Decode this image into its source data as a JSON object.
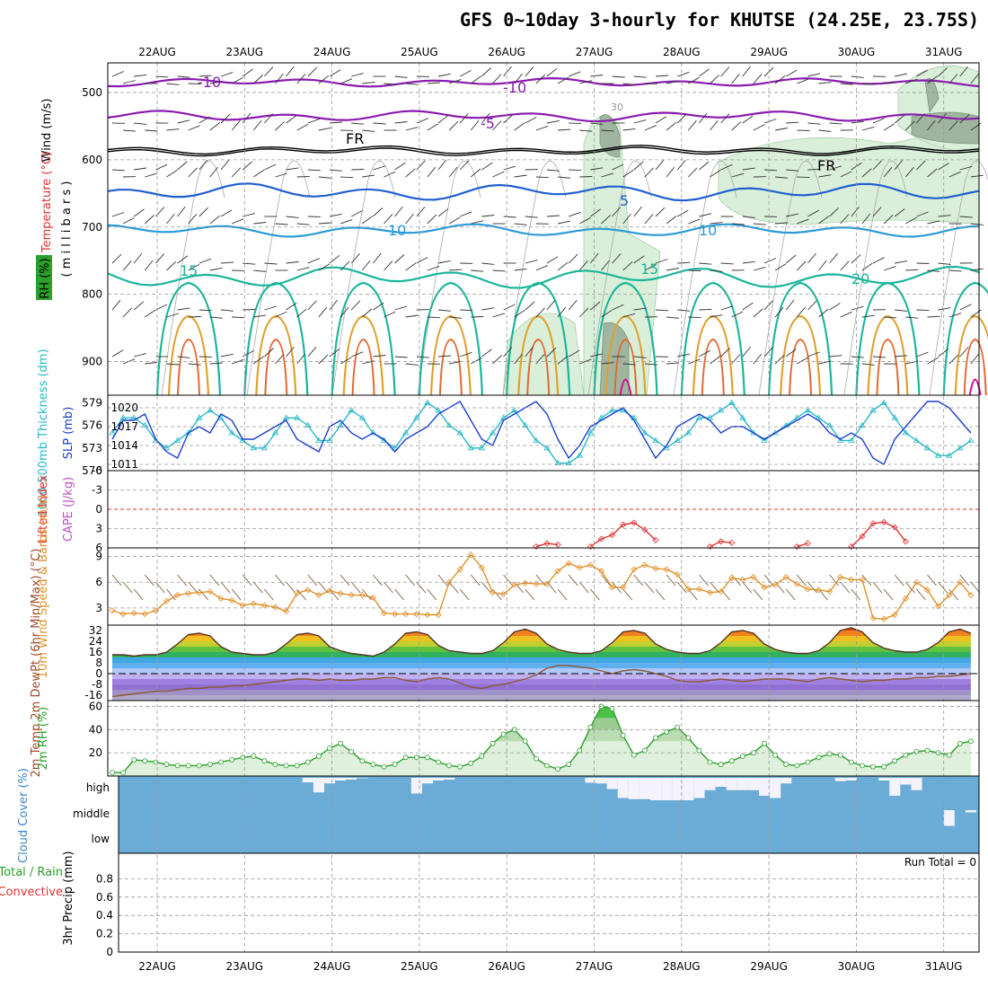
{
  "title": "GFS 0~10day 3-hourly for KHUTSE (24.25E, 23.75S)",
  "colors": {
    "temp_purple": "#8a1bb0",
    "temp_blue": "#1f5fcf",
    "temp_lightblue": "#2a9ad8",
    "temp_teal": "#1bb59a",
    "temp_orange": "#e0a030",
    "slp": "#1a3fcf",
    "thickness": "#26b8c8",
    "lifted_index": "#e03030",
    "cape": "#c050c0",
    "wind10m": "#e0902a",
    "rh": "#2aa02a",
    "cloud": "#6aacd6",
    "precip_total": "#2aa02a",
    "precip_conv": "#e03030"
  },
  "chart_data": [
    {
      "panel": "upper-air",
      "type": "heatmap",
      "x_ticks": [
        "22AUG",
        "23AUG",
        "24AUG",
        "25AUG",
        "26AUG",
        "27AUG",
        "28AUG",
        "29AUG",
        "30AUG",
        "31AUG"
      ],
      "y_ticks": [
        "500",
        "600",
        "700",
        "800",
        "900"
      ],
      "ylabel_parts": {
        "wind": "Wind (m/s)",
        "temperature": "Temperature (°C)",
        "millibars": "( m i l l i b a r s )",
        "rh": "RH (%)"
      },
      "contour_labels": [
        "-10",
        "-10",
        "-5",
        "FR",
        "FR",
        "5",
        "10",
        "10",
        "15",
        "15",
        "20",
        "30"
      ]
    },
    {
      "panel": "thickness-slp",
      "type": "line",
      "ylabel_left": "1000-500mb Thickness (dm)",
      "ylabel_right": "SLP (mb)",
      "y_ticks_left": [
        "579",
        "576",
        "573",
        "570"
      ],
      "y_ticks_right": [
        "1020",
        "1017",
        "1014",
        "1011"
      ],
      "ylim_left": [
        570,
        580
      ],
      "ylim_right": [
        1010,
        1022
      ],
      "series": [
        {
          "name": "SLP (mb)",
          "values": [
            1015,
            1018,
            1018,
            1019,
            1015,
            1013,
            1012,
            1016,
            1017,
            1016,
            1019,
            1018,
            1015,
            1015,
            1016,
            1017,
            1018,
            1015,
            1014,
            1013,
            1017,
            1018,
            1016,
            1015,
            1016,
            1015,
            1013,
            1015,
            1016,
            1017,
            1019,
            1020,
            1021,
            1018,
            1015,
            1014,
            1018,
            1019,
            1020,
            1021,
            1019,
            1015,
            1012,
            1014,
            1017,
            1018,
            1019,
            1020,
            1018,
            1015,
            1012,
            1014,
            1017,
            1018,
            1019,
            1018,
            1016,
            1017,
            1017,
            1016,
            1015,
            1016,
            1017,
            1018,
            1019,
            1018,
            1016,
            1015,
            1016,
            1015,
            1012,
            1011,
            1015,
            1017,
            1019,
            1021,
            1021,
            1020,
            1018,
            1016
          ]
        },
        {
          "name": "1000-500mb Thickness (dm)",
          "values": [
            575,
            577,
            577,
            576,
            574,
            573,
            574,
            575,
            577,
            578,
            577,
            575,
            574,
            573,
            573,
            575,
            577,
            577,
            576,
            574,
            574,
            576,
            578,
            577,
            575,
            574,
            573,
            575,
            577,
            579,
            578,
            576,
            575,
            573,
            573,
            575,
            577,
            578,
            576,
            574,
            573,
            571,
            571,
            572,
            575,
            577,
            578,
            578,
            577,
            575,
            574,
            573,
            574,
            575,
            577,
            577,
            578,
            579,
            577,
            575,
            574,
            575,
            576,
            577,
            578,
            577,
            576,
            574,
            574,
            576,
            578,
            579,
            577,
            575,
            574,
            573,
            572,
            572,
            573,
            574
          ]
        }
      ]
    },
    {
      "panel": "lifted-cape",
      "type": "line",
      "ylabel_left": "Lifted Index",
      "ylabel_right": "CAPE (J/kg)",
      "y_ticks": [
        "-6",
        "-3",
        "0",
        "3",
        "6"
      ],
      "ylim": [
        -6,
        6
      ],
      "series": [
        {
          "name": "Lifted Index",
          "segments": [
            {
              "start": 39,
              "values": [
                5.8,
                5.3,
                5.5
              ]
            },
            {
              "start": 44,
              "values": [
                5.8,
                4.6,
                4.0,
                2.4,
                2.1,
                3.2,
                4.8
              ]
            },
            {
              "start": 55,
              "values": [
                5.8,
                5.0,
                5.2
              ]
            },
            {
              "start": 63,
              "values": [
                5.8,
                5.3
              ]
            },
            {
              "start": 68,
              "values": [
                5.8,
                4.2,
                2.2,
                2.0,
                2.8,
                5.0
              ]
            }
          ]
        }
      ]
    },
    {
      "panel": "wind10m",
      "type": "line",
      "ylabel": "10m Wind Speed & Barbs (m/s)",
      "y_ticks": [
        "3",
        "6",
        "9"
      ],
      "ylim": [
        1,
        10
      ],
      "series": [
        {
          "name": "10m Wind Speed",
          "values": [
            2.7,
            2.3,
            2.4,
            2.3,
            2.7,
            3.8,
            4.5,
            4.7,
            4.8,
            4.9,
            4.1,
            3.9,
            3.3,
            3.5,
            3.3,
            3.1,
            2.6,
            4.7,
            5.1,
            4.5,
            5.0,
            4.7,
            4.5,
            4.5,
            4.2,
            2.4,
            2.3,
            2.3,
            2.3,
            2.2,
            2.2,
            6.0,
            7.5,
            9.2,
            7.7,
            4.8,
            4.6,
            5.7,
            5.9,
            5.8,
            5.8,
            7.3,
            8.2,
            7.7,
            8.0,
            7.3,
            5.4,
            5.4,
            7.5,
            8.0,
            7.6,
            7.5,
            6.9,
            5.2,
            5.2,
            4.8,
            4.9,
            6.5,
            6.3,
            6.6,
            5.4,
            5.7,
            6.6,
            5.8,
            5.2,
            5.1,
            4.9,
            6.6,
            6.3,
            6.3,
            1.8,
            1.7,
            2.2,
            4.1,
            6.0,
            5.1,
            3.2,
            4.5,
            6.0,
            4.5
          ]
        }
      ]
    },
    {
      "panel": "temp2m",
      "type": "area",
      "ylabel": "2m Temp 2m DewPt (6hr Min/Max) (°C)",
      "y_ticks": [
        "32",
        "24",
        "16",
        "8",
        "0",
        "-8",
        "-16"
      ],
      "ylim": [
        -20,
        36
      ],
      "series": [
        {
          "name": "2m Temp",
          "values": [
            14,
            14,
            13,
            14,
            14,
            16,
            22,
            29,
            30,
            28,
            20,
            16,
            15,
            14,
            14,
            16,
            22,
            29,
            30,
            28,
            20,
            17,
            15,
            14,
            13,
            16,
            22,
            30,
            31,
            29,
            21,
            17,
            16,
            15,
            15,
            17,
            23,
            31,
            33,
            30,
            22,
            18,
            16,
            15,
            15,
            17,
            23,
            31,
            32,
            30,
            22,
            18,
            16,
            15,
            15,
            17,
            23,
            31,
            32,
            30,
            22,
            18,
            16,
            15,
            15,
            17,
            23,
            32,
            34,
            31,
            23,
            19,
            17,
            16,
            16,
            18,
            23,
            31,
            33,
            30
          ]
        },
        {
          "name": "2m DewPt",
          "values": [
            -17,
            -16,
            -15,
            -14,
            -13,
            -13,
            -12,
            -11,
            -11,
            -10,
            -10,
            -9,
            -9,
            -8,
            -7,
            -6,
            -5,
            -4,
            -4,
            -5,
            -4,
            -5,
            -5,
            -4,
            -4,
            -3,
            -3,
            -5,
            -6,
            -4,
            -3,
            -4,
            -7,
            -10,
            -11,
            -9,
            -8,
            -6,
            -4,
            -1,
            4,
            6,
            6,
            5,
            4,
            2,
            0,
            2,
            3,
            2,
            0,
            -2,
            -5,
            -6,
            -6,
            -5,
            -4,
            -5,
            -6,
            -5,
            -4,
            -4,
            -4,
            -5,
            -6,
            -4,
            -3,
            -4,
            -5,
            -6,
            -5,
            -5,
            -4,
            -4,
            -3,
            -3,
            -2,
            -2,
            -1,
            0
          ]
        }
      ]
    },
    {
      "panel": "rh2m",
      "type": "area",
      "ylabel": "2m RH (%)",
      "y_ticks": [
        "20",
        "40",
        "60"
      ],
      "ylim": [
        0,
        65
      ],
      "series": [
        {
          "name": "2m RH",
          "values": [
            3,
            3,
            14,
            13,
            12,
            10,
            9,
            9,
            9,
            10,
            12,
            14,
            16,
            17,
            13,
            10,
            9,
            9,
            12,
            17,
            24,
            28,
            21,
            13,
            10,
            8,
            10,
            16,
            16,
            16,
            12,
            9,
            8,
            11,
            17,
            28,
            36,
            40,
            30,
            15,
            9,
            6,
            10,
            22,
            42,
            60,
            58,
            35,
            18,
            22,
            33,
            38,
            42,
            33,
            22,
            12,
            10,
            13,
            17,
            20,
            28,
            18,
            10,
            9,
            12,
            16,
            19,
            18,
            12,
            9,
            8,
            8,
            13,
            18,
            21,
            22,
            20,
            18,
            28,
            30
          ]
        }
      ]
    },
    {
      "panel": "cloud-cover",
      "type": "bar",
      "ylabel": "Cloud Cover (%)",
      "y_ticks": [
        "high",
        "middle",
        "low"
      ],
      "series": [
        {
          "name": "high cloud gap",
          "values": [
            0,
            0,
            0,
            0,
            0,
            0,
            0,
            0,
            0,
            0,
            0,
            0,
            0,
            0,
            0,
            0,
            0,
            0,
            0.2,
            0.65,
            0.25,
            0.12,
            0.08,
            0.02,
            0,
            0,
            0,
            0,
            0.7,
            0.25,
            0.12,
            0.08,
            0,
            0,
            0,
            0,
            0,
            0,
            0,
            0,
            0,
            0,
            0,
            0,
            0.22,
            0.25,
            0.5,
            0.9,
            0.95,
            0.95,
            1,
            1,
            1,
            1,
            0.9,
            0.55,
            0.4,
            0.55,
            0.55,
            0.55,
            0.8,
            0.9,
            0.25,
            0,
            0,
            0,
            0,
            0.15,
            0.12,
            0,
            0,
            0.12,
            0.8,
            0.3,
            0.55,
            0,
            0,
            0,
            0,
            0
          ]
        },
        {
          "name": "middle cloud gap",
          "values": [
            0,
            0,
            0,
            0,
            0,
            0,
            0,
            0,
            0,
            0,
            0,
            0,
            0,
            0,
            0,
            0,
            0,
            0,
            0,
            0,
            0,
            0,
            0,
            0,
            0,
            0,
            0,
            0,
            0,
            0,
            0,
            0,
            0,
            0,
            0,
            0,
            0,
            0,
            0,
            0,
            0,
            0,
            0,
            0,
            0,
            0,
            0,
            0,
            0,
            0,
            0,
            0,
            0,
            0,
            0,
            0,
            0,
            0,
            0,
            0,
            0,
            0,
            0,
            0,
            0,
            0,
            0,
            0,
            0,
            0,
            0,
            0,
            0,
            0,
            0,
            0,
            0,
            0.7,
            0,
            0.1
          ]
        }
      ]
    },
    {
      "panel": "precip",
      "type": "bar",
      "ylabel": "3hr Precip (mm)",
      "legend_left": [
        "Total / Rain",
        "Convective"
      ],
      "run_total": "Run Total = 0",
      "y_ticks": [
        "0",
        "0.2",
        "0.4",
        "0.6",
        "0.8"
      ],
      "ylim": [
        0,
        1
      ],
      "x_ticks": [
        "22AUG",
        "23AUG",
        "24AUG",
        "25AUG",
        "26AUG",
        "27AUG",
        "28AUG",
        "29AUG",
        "30AUG",
        "31AUG"
      ],
      "series": [
        {
          "name": "Total / Rain",
          "values": [
            0,
            0,
            0,
            0,
            0,
            0,
            0,
            0,
            0,
            0
          ]
        }
      ]
    }
  ]
}
